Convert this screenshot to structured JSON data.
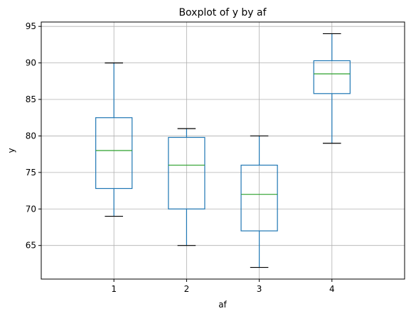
{
  "chart_data": {
    "type": "box",
    "title": "Boxplot of y by af",
    "xlabel": "af",
    "ylabel": "y",
    "categories": [
      "1",
      "2",
      "3",
      "4"
    ],
    "boxes": [
      {
        "category": "1",
        "whisker_low": 69,
        "q1": 72.8,
        "median": 78,
        "q3": 82.5,
        "whisker_high": 90
      },
      {
        "category": "2",
        "whisker_low": 65,
        "q1": 70,
        "median": 76,
        "q3": 79.8,
        "whisker_high": 81
      },
      {
        "category": "3",
        "whisker_low": 62,
        "q1": 67,
        "median": 72,
        "q3": 76,
        "whisker_high": 80
      },
      {
        "category": "4",
        "whisker_low": 79,
        "q1": 85.8,
        "median": 88.5,
        "q3": 90.3,
        "whisker_high": 94
      }
    ],
    "yticks": [
      65,
      70,
      75,
      80,
      85,
      90,
      95
    ],
    "ylim": [
      60.4,
      95.6
    ],
    "grid": true,
    "colors": {
      "box": "#1f77b4",
      "median": "#2ca02c",
      "whisker": "#1f77b4",
      "cap": "#000000",
      "grid": "#b0b0b0"
    }
  }
}
